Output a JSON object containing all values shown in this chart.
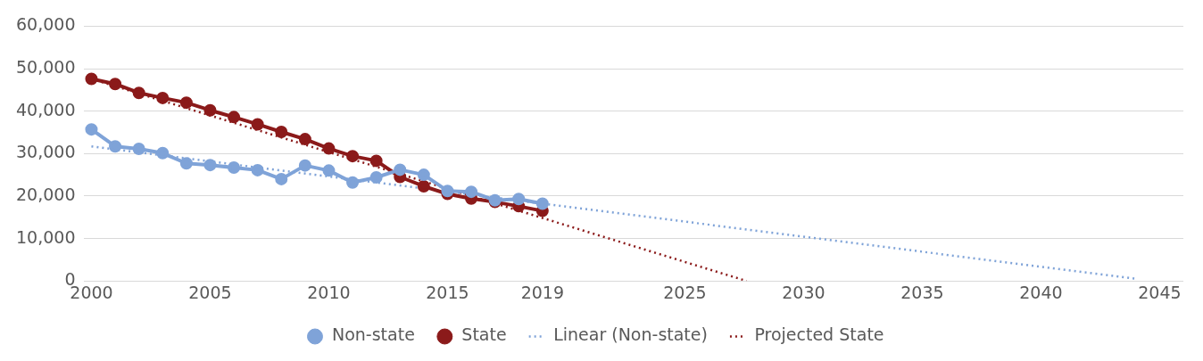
{
  "chart_data": {
    "type": "line",
    "xlim": [
      1999.7,
      2046
    ],
    "xticks": [
      2000,
      2005,
      2010,
      2015,
      2019,
      2025,
      2030,
      2035,
      2040,
      2045
    ],
    "ylim": [
      0,
      60000
    ],
    "yticks": [
      {
        "value": 0,
        "label": "0"
      },
      {
        "value": 10000,
        "label": "10,000"
      },
      {
        "value": 20000,
        "label": "20,000"
      },
      {
        "value": 30000,
        "label": "30,000"
      },
      {
        "value": 40000,
        "label": "40,000"
      },
      {
        "value": 50000,
        "label": "50,000"
      },
      {
        "value": 60000,
        "label": "60,000"
      }
    ],
    "grid": "y",
    "legend": "bottom",
    "series": [
      {
        "name": "Non-state",
        "color": "#7fa3d8",
        "marker": "circle",
        "line_style": "solid",
        "x": [
          2000,
          2001,
          2002,
          2003,
          2004,
          2005,
          2006,
          2007,
          2008,
          2009,
          2010,
          2011,
          2012,
          2013,
          2014,
          2015,
          2016,
          2017,
          2018,
          2019
        ],
        "values": [
          35700,
          31700,
          31100,
          30100,
          27700,
          27300,
          26700,
          26100,
          24000,
          27200,
          26000,
          23200,
          24400,
          26200,
          25000,
          21200,
          21000,
          19000,
          19300,
          18200
        ]
      },
      {
        "name": "State",
        "color": "#8b1a1a",
        "marker": "circle",
        "line_style": "solid",
        "x": [
          2000,
          2001,
          2002,
          2003,
          2004,
          2005,
          2006,
          2007,
          2008,
          2009,
          2010,
          2011,
          2012,
          2013,
          2014,
          2015,
          2016,
          2017,
          2018,
          2019
        ],
        "values": [
          47600,
          46400,
          44300,
          43100,
          42000,
          40200,
          38600,
          36900,
          35100,
          33400,
          31200,
          29400,
          28300,
          24500,
          22300,
          20500,
          19400,
          18600,
          17600,
          16500
        ]
      },
      {
        "name": "Linear (Non-state)",
        "color": "#7fa3d8",
        "marker": "none",
        "line_style": "dotted",
        "x": [
          2000,
          2044
        ],
        "values": [
          31700,
          500
        ]
      },
      {
        "name": "Projected State",
        "color": "#8b1a1a",
        "marker": "none",
        "line_style": "dotted",
        "x": [
          2000,
          2027.6
        ],
        "values": [
          47600,
          0
        ]
      }
    ]
  }
}
